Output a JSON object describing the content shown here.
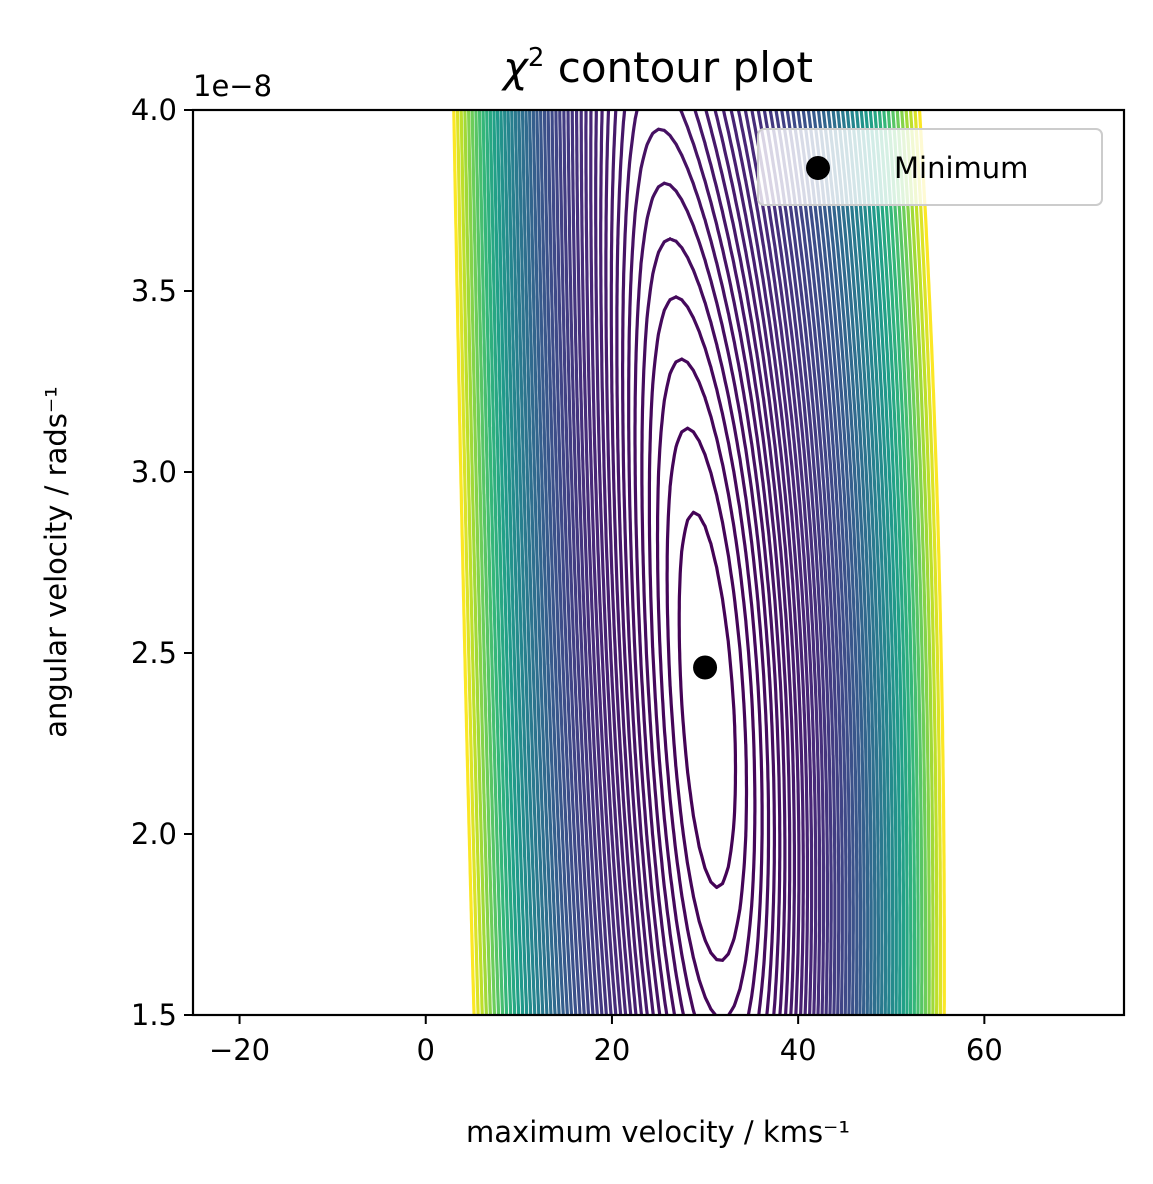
{
  "chart_data": {
    "type": "contour",
    "title": "χ² contour plot",
    "xlabel": "maximum velocity / kms⁻¹",
    "ylabel": "angular velocity / rads⁻¹",
    "y_offset_text": "1e−8",
    "xlim": [
      -25,
      75
    ],
    "ylim": [
      1.5,
      4.0
    ],
    "x_ticks": [
      {
        "value": -20,
        "label": "−20"
      },
      {
        "value": 0,
        "label": "0"
      },
      {
        "value": 20,
        "label": "20"
      },
      {
        "value": 40,
        "label": "40"
      },
      {
        "value": 60,
        "label": "60"
      }
    ],
    "y_ticks": [
      {
        "value": 1.5,
        "label": "1.5"
      },
      {
        "value": 2.0,
        "label": "2.0"
      },
      {
        "value": 2.5,
        "label": "2.5"
      },
      {
        "value": 3.0,
        "label": "3.0"
      },
      {
        "value": 3.5,
        "label": "3.5"
      },
      {
        "value": 4.0,
        "label": "4.0"
      }
    ],
    "minimum": {
      "x": 30,
      "y": 2.46,
      "label": "Minimum",
      "color": "#000000"
    },
    "legend_position": "top-right",
    "colormap": "viridis",
    "grid": false
  }
}
